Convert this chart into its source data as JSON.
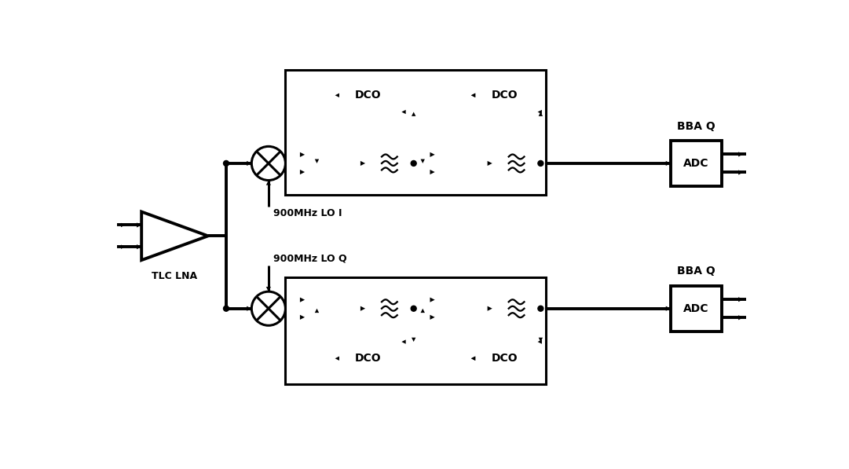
{
  "bg_color": "#ffffff",
  "lw_thin": 1.5,
  "lw_main": 2.2,
  "lw_heavy": 2.8,
  "fig_width": 10.81,
  "fig_height": 5.97,
  "xlim": [
    0,
    108.1
  ],
  "ylim": [
    0,
    59.7
  ]
}
